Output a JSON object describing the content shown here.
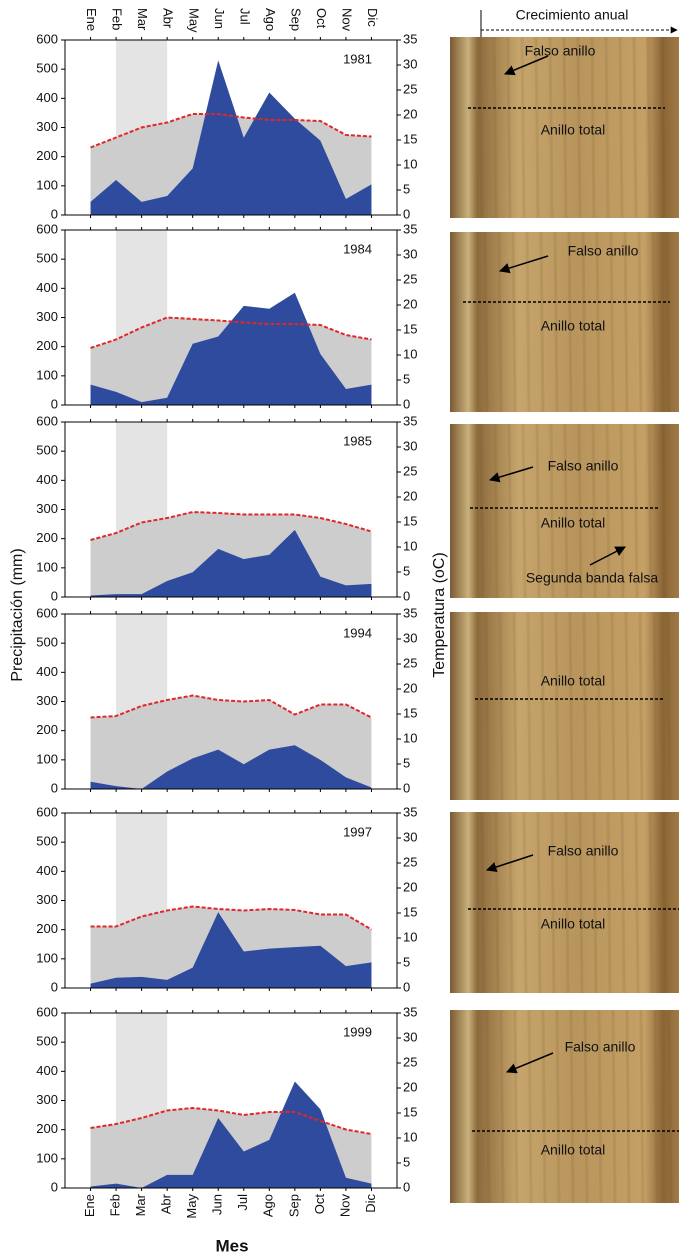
{
  "figure": {
    "y_label": "Precipitación (mm)",
    "y2_label": "Temperatura (oC)",
    "x_label": "Mes",
    "categories": [
      "Ene",
      "Feb",
      "Mar",
      "Abr",
      "May",
      "Jun",
      "Jul",
      "Ago",
      "Sep",
      "Oct",
      "Nov",
      "Dic"
    ],
    "shade": {
      "from": "Feb",
      "to": "Abr",
      "color": "#e4e4e4"
    }
  },
  "chart_data": [
    {
      "type": "area",
      "title": "1981",
      "ylim": [
        0,
        600
      ],
      "yticks": [
        0,
        100,
        200,
        300,
        400,
        500,
        600
      ],
      "y2lim": [
        0,
        35
      ],
      "y2ticks": [
        0,
        5,
        10,
        15,
        20,
        25,
        30,
        35
      ],
      "series": [
        {
          "color": "#2f4b9e",
          "values": [
            45,
            120,
            45,
            65,
            160,
            530,
            265,
            420,
            330,
            255,
            55,
            105
          ]
        },
        {
          "color": "#e0262a",
          "fill": "#cdcdcd",
          "axis": "y2",
          "values": [
            13.5,
            15.5,
            17.5,
            18.5,
            20.2,
            20.2,
            19.5,
            19,
            19,
            18.8,
            16,
            15.7
          ]
        }
      ]
    },
    {
      "type": "area",
      "title": "1984",
      "ylim": [
        0,
        600
      ],
      "yticks": [
        0,
        100,
        200,
        300,
        400,
        500,
        600
      ],
      "y2lim": [
        0,
        35
      ],
      "y2ticks": [
        0,
        5,
        10,
        15,
        20,
        25,
        30,
        35
      ],
      "series": [
        {
          "color": "#2f4b9e",
          "values": [
            70,
            45,
            10,
            25,
            210,
            235,
            340,
            330,
            385,
            175,
            55,
            70
          ]
        },
        {
          "color": "#e0262a",
          "fill": "#cdcdcd",
          "axis": "y2",
          "values": [
            11.4,
            13.1,
            15.5,
            17.5,
            17.2,
            16.9,
            16.5,
            16.2,
            16.2,
            16,
            14,
            13.1
          ]
        }
      ]
    },
    {
      "type": "area",
      "title": "1985",
      "ylim": [
        0,
        600
      ],
      "yticks": [
        0,
        100,
        200,
        300,
        400,
        500,
        600
      ],
      "y2lim": [
        0,
        35
      ],
      "y2ticks": [
        0,
        5,
        10,
        15,
        20,
        25,
        30,
        35
      ],
      "series": [
        {
          "color": "#2f4b9e",
          "values": [
            5,
            10,
            10,
            55,
            85,
            165,
            130,
            145,
            230,
            70,
            40,
            45
          ]
        },
        {
          "color": "#e0262a",
          "fill": "#cdcdcd",
          "axis": "y2",
          "values": [
            11.4,
            12.8,
            14.9,
            15.8,
            17,
            16.8,
            16.5,
            16.5,
            16.5,
            15.8,
            14.6,
            13.1
          ]
        }
      ]
    },
    {
      "type": "area",
      "title": "1994",
      "ylim": [
        0,
        600
      ],
      "yticks": [
        0,
        100,
        200,
        300,
        400,
        500,
        600
      ],
      "y2lim": [
        0,
        35
      ],
      "y2ticks": [
        0,
        5,
        10,
        15,
        20,
        25,
        30,
        35
      ],
      "series": [
        {
          "color": "#2f4b9e",
          "values": [
            25,
            10,
            0,
            60,
            105,
            135,
            85,
            135,
            150,
            100,
            40,
            5
          ]
        },
        {
          "color": "#e0262a",
          "fill": "#cdcdcd",
          "axis": "y2",
          "values": [
            14.3,
            14.6,
            16.6,
            17.8,
            18.7,
            17.8,
            17.5,
            17.8,
            14.9,
            16.9,
            16.9,
            14.3
          ]
        }
      ]
    },
    {
      "type": "area",
      "title": "1997",
      "ylim": [
        0,
        600
      ],
      "yticks": [
        0,
        100,
        200,
        300,
        400,
        500,
        600
      ],
      "y2lim": [
        0,
        35
      ],
      "y2ticks": [
        0,
        5,
        10,
        15,
        20,
        25,
        30,
        35
      ],
      "series": [
        {
          "color": "#2f4b9e",
          "values": [
            15,
            35,
            38,
            28,
            70,
            260,
            125,
            135,
            140,
            145,
            75,
            88
          ]
        },
        {
          "color": "#e0262a",
          "fill": "#cdcdcd",
          "axis": "y2",
          "values": [
            12.3,
            12.3,
            14.3,
            15.5,
            16.3,
            15.8,
            15.5,
            15.8,
            15.6,
            14.7,
            14.7,
            11.7
          ]
        }
      ]
    },
    {
      "type": "area",
      "title": "1999",
      "ylim": [
        0,
        600
      ],
      "yticks": [
        0,
        100,
        200,
        300,
        400,
        500,
        600
      ],
      "y2lim": [
        0,
        35
      ],
      "y2ticks": [
        0,
        5,
        10,
        15,
        20,
        25,
        30,
        35
      ],
      "series": [
        {
          "color": "#2f4b9e",
          "values": [
            5,
            15,
            0,
            45,
            45,
            240,
            125,
            165,
            365,
            270,
            35,
            15
          ]
        },
        {
          "color": "#e0262a",
          "fill": "#cdcdcd",
          "axis": "y2",
          "values": [
            12,
            12.8,
            14,
            15.5,
            16,
            15.5,
            14.6,
            15.2,
            15.2,
            13.4,
            11.7,
            10.8
          ]
        }
      ]
    }
  ],
  "photos": {
    "header": "Crecimiento anual",
    "panels": [
      {
        "labels": [
          "Falso anillo",
          "Anillo total"
        ]
      },
      {
        "labels": [
          "Falso anillo",
          "Anillo total"
        ]
      },
      {
        "labels": [
          "Falso anillo",
          "Anillo total",
          "Segunda banda falsa"
        ]
      },
      {
        "labels": [
          "Anillo total"
        ]
      },
      {
        "labels": [
          "Falso anillo",
          "Anillo total"
        ]
      },
      {
        "labels": [
          "Falso anillo",
          "Anillo total"
        ]
      }
    ]
  }
}
